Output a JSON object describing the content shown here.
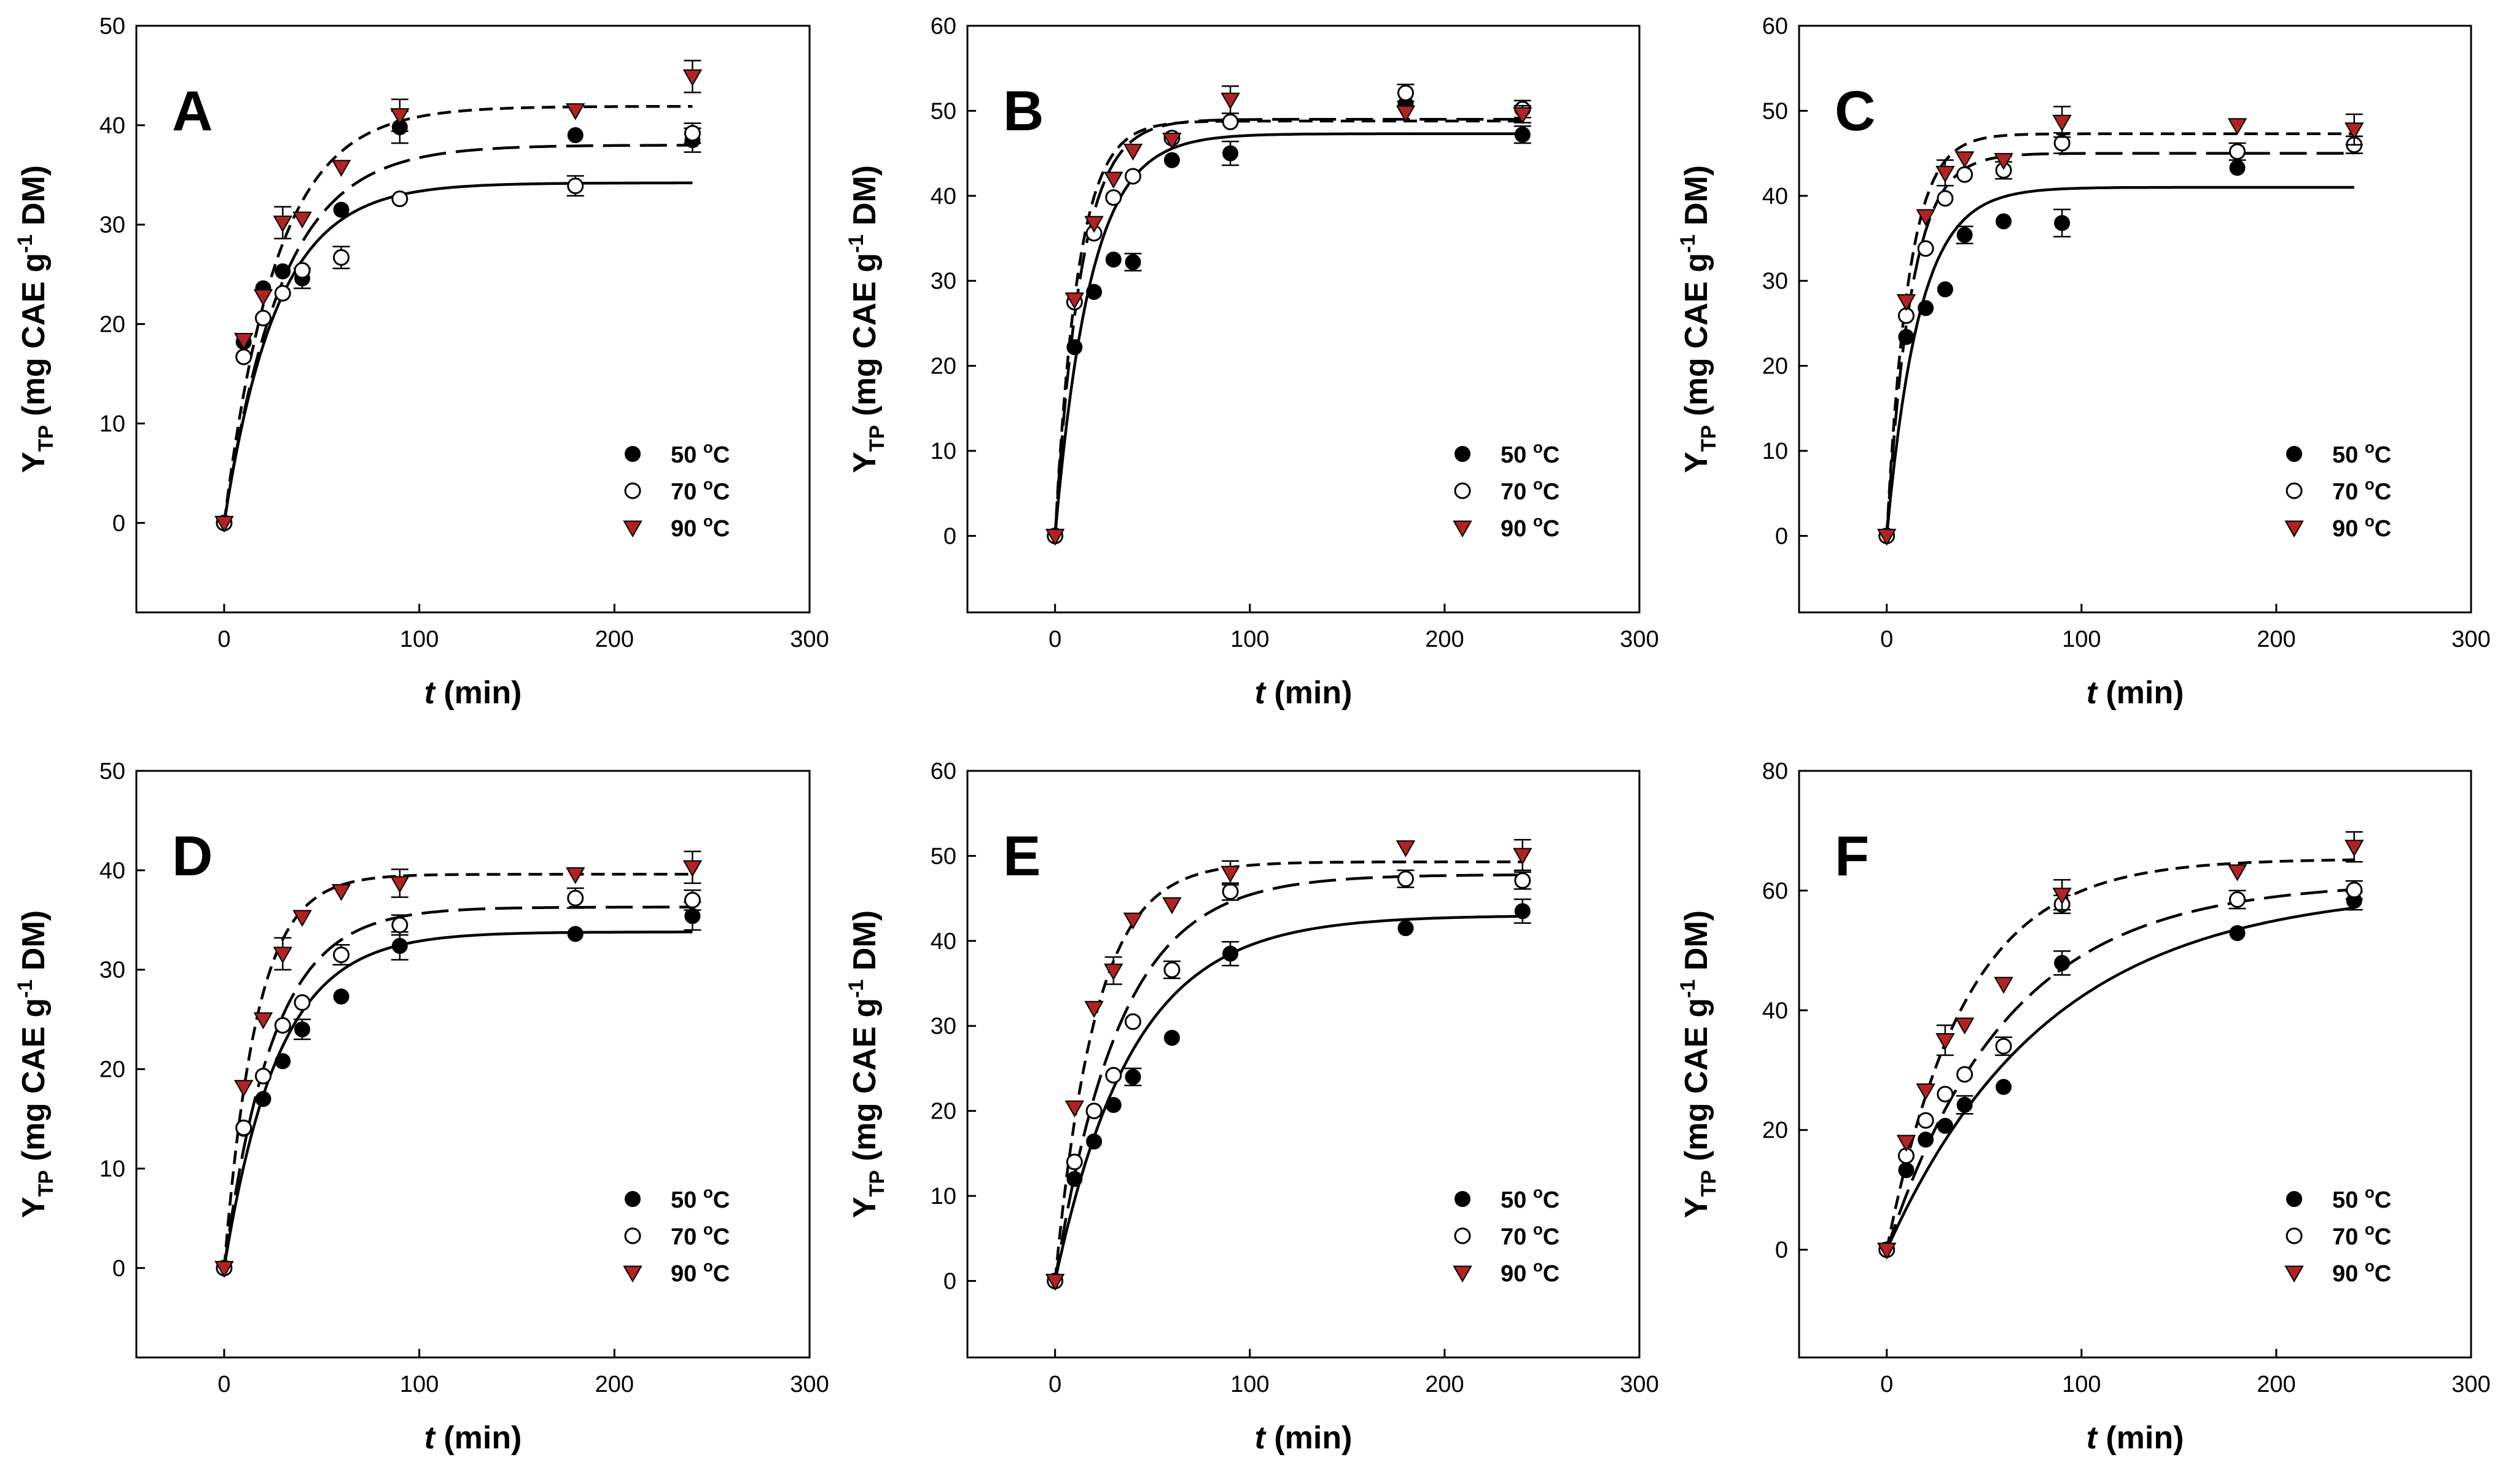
{
  "chart_data": [
    {
      "type": "scatter",
      "panel_label": "A",
      "xlabel_italic": "t",
      "xlabel_unit": "(min)",
      "ylabel": {
        "main": "Y",
        "sub": "TP",
        "unit_a": "(mg CAE g",
        "sup": "-1",
        "unit_b": " DM)"
      },
      "xlim": [
        -45,
        300
      ],
      "ylim": [
        -9,
        50
      ],
      "xticks": [
        0,
        100,
        200,
        300
      ],
      "yticks": [
        0,
        10,
        20,
        30,
        40,
        50
      ],
      "legend_position": "lower-right",
      "series": [
        {
          "name": "50",
          "unit": "oC",
          "marker": "filled-circle",
          "line": "solid",
          "x": [
            0,
            10,
            20,
            30,
            40,
            60,
            90,
            180,
            240
          ],
          "y": [
            0,
            18.2,
            23.6,
            25.3,
            24.6,
            31.5,
            39.8,
            39.0,
            38.5
          ],
          "err": [
            0,
            0,
            0,
            0,
            1.0,
            0,
            1.6,
            0,
            1.2
          ],
          "fit": {
            "ymax": 34.2,
            "k": 0.037
          }
        },
        {
          "name": "70",
          "unit": "oC",
          "marker": "open-circle",
          "line": "long-dash",
          "x": [
            0,
            10,
            20,
            30,
            40,
            60,
            90,
            180,
            240
          ],
          "y": [
            0,
            16.7,
            20.6,
            23.1,
            25.4,
            26.7,
            32.6,
            33.9,
            39.2
          ],
          "err": [
            0,
            0,
            0,
            0,
            0,
            1.1,
            0,
            1.0,
            1.0
          ],
          "fit": {
            "ymax": 38.0,
            "k": 0.034
          }
        },
        {
          "name": "90",
          "unit": "oC",
          "marker": "red-triangle",
          "line": "short-dash",
          "x": [
            0,
            10,
            20,
            30,
            40,
            60,
            90,
            180,
            240
          ],
          "y": [
            0,
            18.4,
            22.8,
            30.2,
            30.6,
            35.8,
            41.0,
            41.5,
            44.9
          ],
          "err": [
            0,
            0,
            0,
            1.6,
            0,
            0,
            1.6,
            0,
            1.6
          ],
          "fit": {
            "ymax": 41.9,
            "k": 0.037
          }
        }
      ]
    },
    {
      "type": "scatter",
      "panel_label": "B",
      "xlabel_italic": "t",
      "xlabel_unit": "(min)",
      "ylabel": {
        "main": "Y",
        "sub": "TP",
        "unit_a": "(mg CAE g",
        "sup": "-1",
        "unit_b": " DM)"
      },
      "xlim": [
        -45,
        300
      ],
      "ylim": [
        -9,
        60
      ],
      "xticks": [
        0,
        100,
        200,
        300
      ],
      "yticks": [
        0,
        10,
        20,
        30,
        40,
        50,
        60
      ],
      "legend_position": "lower-right",
      "series": [
        {
          "name": "50",
          "unit": "oC",
          "marker": "filled-circle",
          "line": "solid",
          "x": [
            0,
            10,
            20,
            30,
            40,
            60,
            90,
            180,
            240
          ],
          "y": [
            0,
            22.2,
            28.7,
            32.5,
            32.2,
            44.2,
            45.0,
            50.8,
            47.2
          ],
          "err": [
            0,
            0,
            0,
            0,
            1.0,
            0,
            1.4,
            0,
            1.0
          ],
          "fit": {
            "ymax": 47.3,
            "k": 0.055
          }
        },
        {
          "name": "70",
          "unit": "oC",
          "marker": "open-circle",
          "line": "long-dash",
          "x": [
            0,
            10,
            20,
            30,
            40,
            60,
            90,
            180,
            240
          ],
          "y": [
            0,
            27.5,
            35.6,
            39.8,
            42.3,
            46.8,
            48.7,
            52.1,
            50.2
          ],
          "err": [
            0,
            0,
            0,
            0,
            0,
            0,
            0,
            1.0,
            1.0
          ],
          "fit": {
            "ymax": 49.0,
            "k": 0.075
          }
        },
        {
          "name": "90",
          "unit": "oC",
          "marker": "red-triangle",
          "line": "short-dash",
          "x": [
            0,
            10,
            20,
            30,
            40,
            60,
            90,
            180,
            240
          ],
          "y": [
            0,
            27.8,
            36.8,
            42.0,
            45.3,
            46.6,
            51.3,
            49.8,
            49.6
          ],
          "err": [
            0,
            0,
            0,
            0,
            0,
            0,
            1.6,
            0,
            1.0
          ],
          "fit": {
            "ymax": 48.8,
            "k": 0.085
          }
        }
      ]
    },
    {
      "type": "scatter",
      "panel_label": "C",
      "xlabel_italic": "t",
      "xlabel_unit": "(min)",
      "ylabel": {
        "main": "Y",
        "sub": "TP",
        "unit_a": "(mg CAE g",
        "sup": "-1",
        "unit_b": " DM)"
      },
      "xlim": [
        -45,
        300
      ],
      "ylim": [
        -9,
        60
      ],
      "xticks": [
        0,
        100,
        200,
        300
      ],
      "yticks": [
        0,
        10,
        20,
        30,
        40,
        50,
        60
      ],
      "legend_position": "lower-right",
      "series": [
        {
          "name": "50",
          "unit": "oC",
          "marker": "filled-circle",
          "line": "solid",
          "x": [
            0,
            10,
            20,
            30,
            40,
            60,
            90,
            180,
            240
          ],
          "y": [
            0,
            23.4,
            26.8,
            29.0,
            35.4,
            37.0,
            36.8,
            43.3,
            46.0
          ],
          "err": [
            0,
            0,
            0,
            0,
            1.0,
            0,
            1.6,
            0,
            1.0
          ],
          "fit": {
            "ymax": 41.0,
            "k": 0.06
          }
        },
        {
          "name": "70",
          "unit": "oC",
          "marker": "open-circle",
          "line": "long-dash",
          "x": [
            0,
            10,
            20,
            30,
            40,
            60,
            90,
            180,
            240
          ],
          "y": [
            0,
            25.9,
            33.8,
            39.7,
            42.5,
            43.0,
            46.2,
            45.2,
            46.0
          ],
          "err": [
            0,
            0,
            0,
            0,
            0,
            1.0,
            1.2,
            1.0,
            1.0
          ],
          "fit": {
            "ymax": 45.0,
            "k": 0.08
          }
        },
        {
          "name": "90",
          "unit": "oC",
          "marker": "red-triangle",
          "line": "short-dash",
          "x": [
            0,
            10,
            20,
            30,
            40,
            60,
            90,
            180,
            240
          ],
          "y": [
            0,
            27.6,
            37.6,
            42.7,
            44.4,
            44.2,
            48.7,
            48.3,
            47.8
          ],
          "err": [
            0,
            0,
            0,
            1.5,
            0,
            0,
            1.8,
            0,
            1.8
          ],
          "fit": {
            "ymax": 47.3,
            "k": 0.09
          }
        }
      ]
    },
    {
      "type": "scatter",
      "panel_label": "D",
      "xlabel_italic": "t",
      "xlabel_unit": "(min)",
      "ylabel": {
        "main": "Y",
        "sub": "TP",
        "unit_a": "(mg CAE g",
        "sup": "-1",
        "unit_b": " DM)"
      },
      "xlim": [
        -45,
        300
      ],
      "ylim": [
        -9,
        50
      ],
      "xticks": [
        0,
        100,
        200,
        300
      ],
      "yticks": [
        0,
        10,
        20,
        30,
        40,
        50
      ],
      "legend_position": "lower-right",
      "series": [
        {
          "name": "50",
          "unit": "oC",
          "marker": "filled-circle",
          "line": "solid",
          "x": [
            0,
            10,
            20,
            30,
            40,
            60,
            90,
            180,
            240
          ],
          "y": [
            0,
            14.0,
            17.0,
            20.8,
            24.0,
            27.3,
            32.4,
            33.6,
            35.4
          ],
          "err": [
            0,
            0,
            0,
            0,
            1.0,
            0,
            1.4,
            0,
            1.4
          ],
          "fit": {
            "ymax": 33.8,
            "k": 0.036
          }
        },
        {
          "name": "70",
          "unit": "oC",
          "marker": "open-circle",
          "line": "long-dash",
          "x": [
            0,
            10,
            20,
            30,
            40,
            60,
            90,
            180,
            240
          ],
          "y": [
            0,
            14.1,
            19.3,
            24.4,
            26.7,
            31.5,
            34.5,
            37.2,
            37.0
          ],
          "err": [
            0,
            0,
            0,
            0,
            0,
            1.0,
            1.0,
            1.0,
            1.0
          ],
          "fit": {
            "ymax": 36.3,
            "k": 0.04
          }
        },
        {
          "name": "90",
          "unit": "oC",
          "marker": "red-triangle",
          "line": "short-dash",
          "x": [
            0,
            10,
            20,
            30,
            40,
            60,
            90,
            180,
            240
          ],
          "y": [
            0,
            18.2,
            25.0,
            31.6,
            35.3,
            37.9,
            38.7,
            39.6,
            40.3
          ],
          "err": [
            0,
            0,
            0,
            1.6,
            0,
            0,
            1.4,
            0,
            1.6
          ],
          "fit": {
            "ymax": 39.6,
            "k": 0.06
          }
        }
      ]
    },
    {
      "type": "scatter",
      "panel_label": "E",
      "xlabel_italic": "t",
      "xlabel_unit": "(min)",
      "ylabel": {
        "main": "Y",
        "sub": "TP",
        "unit_a": "(mg CAE g",
        "sup": "-1",
        "unit_b": " DM)"
      },
      "xlim": [
        -45,
        300
      ],
      "ylim": [
        -9,
        60
      ],
      "xticks": [
        0,
        100,
        200,
        300
      ],
      "yticks": [
        0,
        10,
        20,
        30,
        40,
        50,
        60
      ],
      "legend_position": "lower-right",
      "series": [
        {
          "name": "50",
          "unit": "oC",
          "marker": "filled-circle",
          "line": "solid",
          "x": [
            0,
            10,
            20,
            30,
            40,
            60,
            90,
            180,
            240
          ],
          "y": [
            0,
            12.0,
            16.4,
            20.7,
            24.0,
            28.6,
            38.5,
            41.5,
            43.5
          ],
          "err": [
            0,
            0,
            0,
            0,
            1.0,
            0,
            1.4,
            0,
            1.4
          ],
          "fit": {
            "ymax": 43.0,
            "k": 0.025
          }
        },
        {
          "name": "70",
          "unit": "oC",
          "marker": "open-circle",
          "line": "long-dash",
          "x": [
            0,
            10,
            20,
            30,
            40,
            60,
            90,
            180,
            240
          ],
          "y": [
            0,
            14.0,
            20.0,
            24.2,
            30.5,
            36.6,
            45.8,
            47.3,
            47.1
          ],
          "err": [
            0,
            0,
            0,
            0,
            0,
            1.0,
            1.0,
            1.0,
            1.0
          ],
          "fit": {
            "ymax": 47.8,
            "k": 0.03
          }
        },
        {
          "name": "90",
          "unit": "oC",
          "marker": "red-triangle",
          "line": "short-dash",
          "x": [
            0,
            10,
            20,
            30,
            40,
            60,
            90,
            180,
            240
          ],
          "y": [
            0,
            20.4,
            32.1,
            36.5,
            42.5,
            44.3,
            48.0,
            51.0,
            50.1
          ],
          "err": [
            0,
            0,
            0,
            1.6,
            0,
            0,
            1.4,
            0,
            1.8
          ],
          "fit": {
            "ymax": 49.3,
            "k": 0.048
          }
        }
      ]
    },
    {
      "type": "scatter",
      "panel_label": "F",
      "xlabel_italic": "t",
      "xlabel_unit": "(min)",
      "ylabel": {
        "main": "Y",
        "sub": "TP",
        "unit_a": "(mg CAE g",
        "sup": "-1",
        "unit_b": " DM)"
      },
      "xlim": [
        -45,
        300
      ],
      "ylim": [
        -18,
        80
      ],
      "xticks": [
        0,
        100,
        200,
        300
      ],
      "yticks": [
        0,
        20,
        40,
        60,
        80
      ],
      "legend_position": "lower-right",
      "series": [
        {
          "name": "50",
          "unit": "oC",
          "marker": "filled-circle",
          "line": "solid",
          "x": [
            0,
            10,
            20,
            30,
            40,
            60,
            90,
            180,
            240
          ],
          "y": [
            0,
            13.3,
            18.4,
            20.7,
            24.2,
            27.2,
            47.9,
            52.9,
            58.3
          ],
          "err": [
            0,
            0,
            0,
            0,
            1.5,
            0,
            2.0,
            0,
            1.5
          ],
          "fit": {
            "ymax": 60.5,
            "k": 0.012
          }
        },
        {
          "name": "70",
          "unit": "oC",
          "marker": "open-circle",
          "line": "long-dash",
          "x": [
            0,
            10,
            20,
            30,
            40,
            60,
            90,
            180,
            240
          ],
          "y": [
            0,
            15.7,
            21.6,
            26.0,
            29.3,
            34.0,
            57.7,
            58.5,
            60.1
          ],
          "err": [
            0,
            0,
            0,
            0,
            0,
            1.5,
            1.5,
            1.5,
            1.5
          ],
          "fit": {
            "ymax": 61.5,
            "k": 0.016
          }
        },
        {
          "name": "90",
          "unit": "oC",
          "marker": "red-triangle",
          "line": "short-dash",
          "x": [
            0,
            10,
            20,
            30,
            40,
            60,
            90,
            180,
            240
          ],
          "y": [
            0,
            18.0,
            26.6,
            35.0,
            37.6,
            44.4,
            59.3,
            63.2,
            67.3
          ],
          "err": [
            0,
            0,
            0,
            2.5,
            0,
            0,
            2.5,
            0,
            2.5
          ],
          "fit": {
            "ymax": 65.3,
            "k": 0.025
          }
        }
      ]
    }
  ],
  "colors": {
    "axis": "#000000",
    "marker_filled": "#000000",
    "marker_open_fill": "#ffffff",
    "triangle_fill": "#b22222",
    "triangle_stroke": "#000000",
    "background": "#ffffff"
  }
}
